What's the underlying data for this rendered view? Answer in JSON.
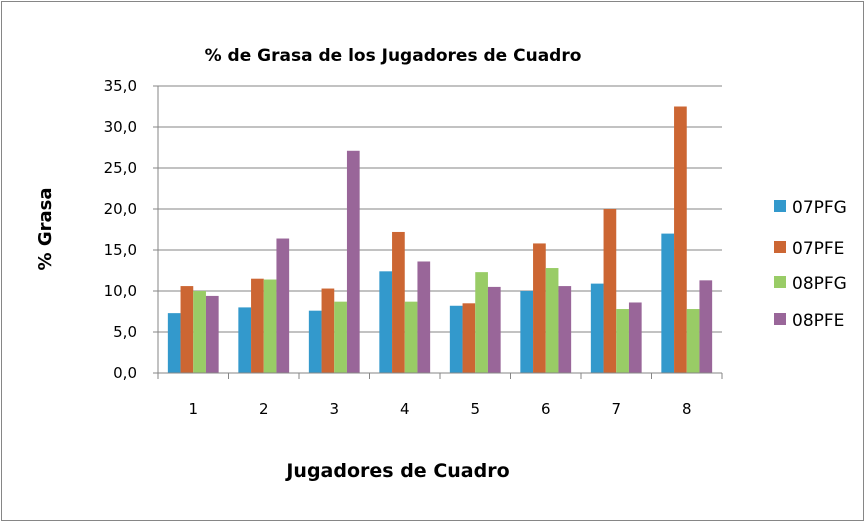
{
  "chart_data": {
    "type": "bar",
    "title": "% de Grasa de los Jugadores de Cuadro",
    "xlabel": "Jugadores de Cuadro",
    "ylabel": "% Grasa",
    "ylim": [
      0,
      35
    ],
    "yticks": [
      "0,0",
      "5,0",
      "10,0",
      "15,0",
      "20,0",
      "25,0",
      "30,0",
      "35,0"
    ],
    "ytick_values": [
      0,
      5,
      10,
      15,
      20,
      25,
      30,
      35
    ],
    "categories": [
      "1",
      "2",
      "3",
      "4",
      "5",
      "6",
      "7",
      "8"
    ],
    "grid": true,
    "legend_position": "right",
    "series": [
      {
        "name": "07PFG",
        "color": "#3399cc",
        "values": [
          7.3,
          8.0,
          7.6,
          12.4,
          8.2,
          10.0,
          10.9,
          17.0
        ]
      },
      {
        "name": "07PFE",
        "color": "#cc6633",
        "values": [
          10.6,
          11.5,
          10.3,
          17.2,
          8.5,
          15.8,
          20.0,
          32.5
        ]
      },
      {
        "name": "08PFG",
        "color": "#99cc66",
        "values": [
          10.0,
          11.4,
          8.7,
          8.7,
          12.3,
          12.8,
          7.8,
          7.8
        ]
      },
      {
        "name": "08PFE",
        "color": "#996699",
        "values": [
          9.4,
          16.4,
          27.1,
          13.6,
          10.5,
          10.6,
          8.6,
          11.3
        ]
      }
    ]
  }
}
